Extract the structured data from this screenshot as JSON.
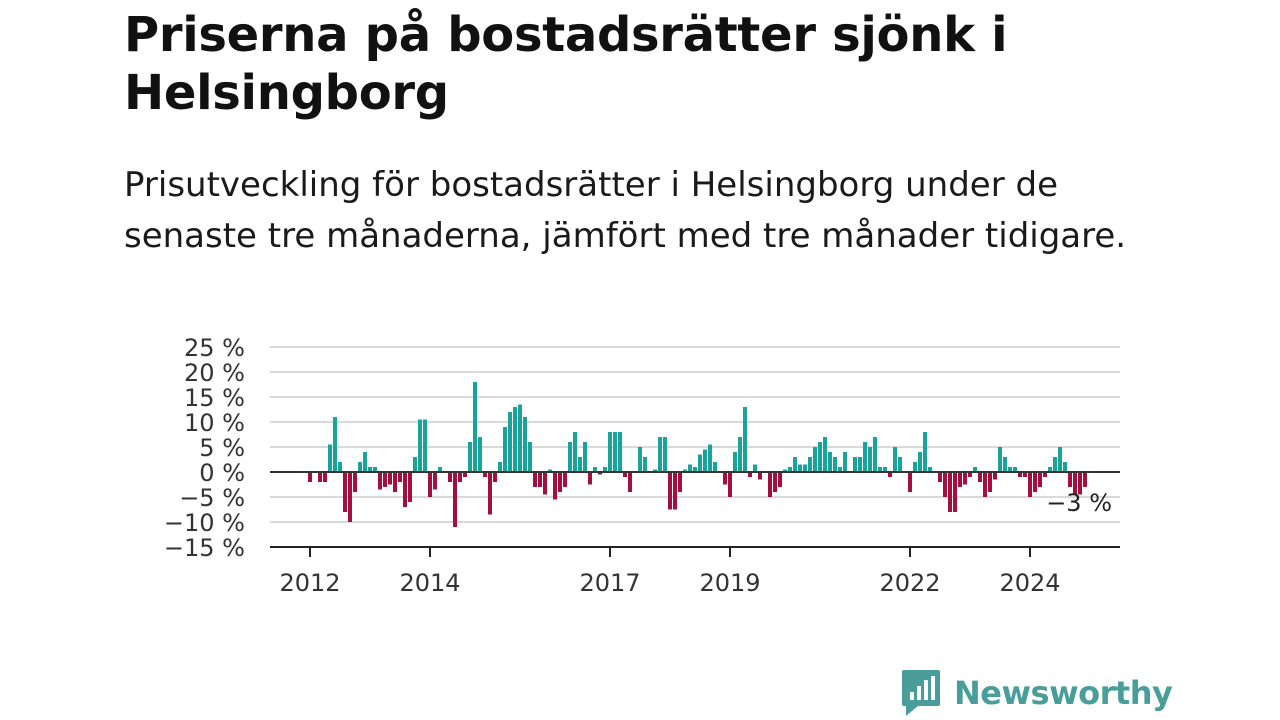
{
  "title": "Priserna på bostadsrätter sjönk i Helsingborg",
  "subtitle": "Prisutveckling för bostadsrätter i Helsingborg under de senaste tre månaderna, jämfört med tre månader tidigare.",
  "logo": {
    "text": "Newsworthy",
    "icon": "newsworthy-chart-icon",
    "color": "#4a9e9a"
  },
  "colors": {
    "positive": "#1aa39a",
    "negative": "#a3103f",
    "grid": "#d9d9d9",
    "zero": "#333333"
  },
  "chart_data": {
    "type": "bar",
    "x_unit": "month",
    "start": "2012-01",
    "ylim": [
      -15,
      25
    ],
    "y_ticks": [
      {
        "value": 25,
        "label": "25 %"
      },
      {
        "value": 20,
        "label": "20 %"
      },
      {
        "value": 15,
        "label": "15 %"
      },
      {
        "value": 10,
        "label": "10 %"
      },
      {
        "value": 5,
        "label": "5 %"
      },
      {
        "value": 0,
        "label": "0 %"
      },
      {
        "value": -5,
        "label": "−5 %"
      },
      {
        "value": -10,
        "label": "−10 %"
      },
      {
        "value": -15,
        "label": "−15 %"
      }
    ],
    "x_ticks": [
      {
        "date": "2012-01",
        "label": "2012"
      },
      {
        "date": "2014-01",
        "label": "2014"
      },
      {
        "date": "2017-01",
        "label": "2017"
      },
      {
        "date": "2019-01",
        "label": "2019"
      },
      {
        "date": "2022-01",
        "label": "2022"
      },
      {
        "date": "2024-01",
        "label": "2024"
      }
    ],
    "last_value_label": "−3 %",
    "grid": true,
    "values": [
      -2,
      0,
      -2,
      -2,
      5.5,
      11,
      2,
      -8,
      -10,
      -4,
      2,
      4,
      1,
      1,
      -3.5,
      -3,
      -2.5,
      -4,
      -2,
      -7,
      -6,
      3,
      10.5,
      10.5,
      -5,
      -3.5,
      1,
      0,
      -2,
      -11,
      -2,
      -1,
      6,
      18,
      7,
      -1,
      -8.5,
      -2,
      2,
      9,
      12,
      13,
      13.5,
      11,
      6,
      -3,
      -3,
      -4.5,
      0.5,
      -5.5,
      -4,
      -3,
      6,
      8,
      3,
      6,
      -2.5,
      1,
      -0.5,
      1,
      8,
      8,
      8,
      -1,
      -4,
      0,
      5,
      3,
      0,
      0.5,
      7,
      7,
      -7.5,
      -7.5,
      -4,
      0.5,
      1.5,
      1,
      3.5,
      4.5,
      5.5,
      2,
      0,
      -2.5,
      -5,
      4,
      7,
      13,
      -1,
      1.5,
      -1.5,
      0,
      -5,
      -4,
      -3,
      0.5,
      1,
      3,
      1.5,
      1.5,
      3,
      5,
      6,
      7,
      4,
      3,
      1,
      4,
      0,
      3,
      3,
      6,
      5,
      7,
      1,
      1,
      -1,
      5,
      3,
      0,
      -4,
      2,
      4,
      8,
      1,
      0,
      -2,
      -5,
      -8,
      -8,
      -3,
      -2.5,
      -1,
      1,
      -2,
      -5,
      -4,
      -1.5,
      5,
      3,
      1,
      1,
      -1,
      -1,
      -5,
      -4,
      -3,
      -1,
      1,
      3,
      5,
      2,
      -3,
      -4.5,
      -4.5,
      -3
    ]
  }
}
